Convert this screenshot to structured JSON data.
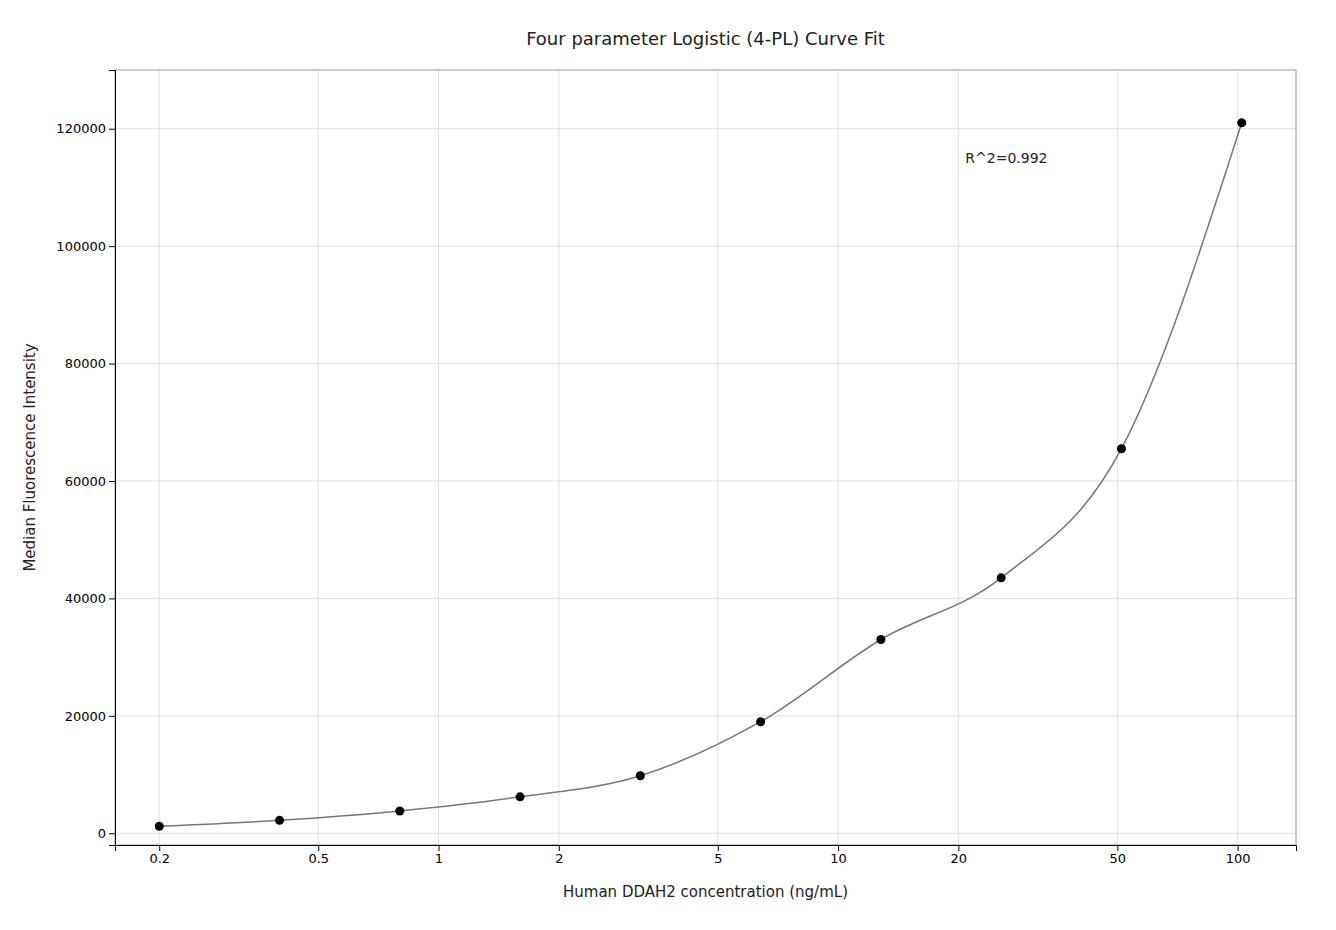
{
  "chart_data": {
    "type": "scatter",
    "title": "Four parameter Logistic (4-PL) Curve Fit",
    "xlabel": "Human DDAH2 concentration (ng/mL)",
    "ylabel": "Median Fluorescence Intensity",
    "annotation": "R^2=0.992",
    "x": [
      0.2,
      0.4,
      0.8,
      1.6,
      3.2,
      6.4,
      12.8,
      25.6,
      51.2,
      102.4
    ],
    "series": [
      {
        "type": "line",
        "color": "#777777",
        "line_style": "solid",
        "values": [
          1200,
          2200,
          3800,
          6200,
          9800,
          19000,
          33000,
          43500,
          65500,
          121000
        ]
      },
      {
        "type": "scatter",
        "color": "#000000",
        "marker": "circle",
        "values": [
          1200,
          2200,
          3800,
          6200,
          9800,
          19000,
          33000,
          43500,
          65500,
          121000
        ]
      }
    ],
    "xlim": [
      0.155,
      140
    ],
    "xticks": [
      0.2,
      0.5,
      1,
      2,
      5,
      10,
      20,
      50,
      100
    ],
    "ylim": [
      -2000,
      130000
    ],
    "yticks": [
      0,
      20000,
      40000,
      60000,
      80000,
      100000,
      120000
    ],
    "log": "x",
    "grid": true
  }
}
